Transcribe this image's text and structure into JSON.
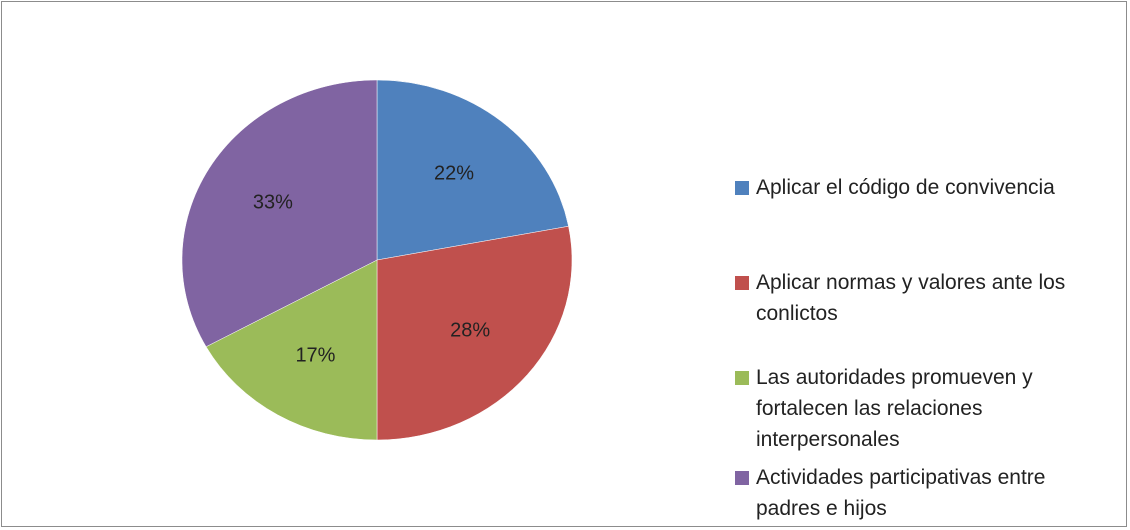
{
  "chart_data": {
    "type": "pie",
    "categories": [
      "Aplicar el código de convivencia",
      "Aplicar normas y valores ante los conlictos",
      "Las autoridades promueven y fortalecen las relaciones interpersonales",
      "Actividades participativas entre padres e hijos"
    ],
    "values": [
      22,
      28,
      17,
      33
    ],
    "value_labels": [
      "22%",
      "28%",
      "17%",
      "33%"
    ],
    "colors": [
      "#4f81bd",
      "#c0504d",
      "#9bbb59",
      "#8064a2"
    ],
    "legend": "right"
  }
}
